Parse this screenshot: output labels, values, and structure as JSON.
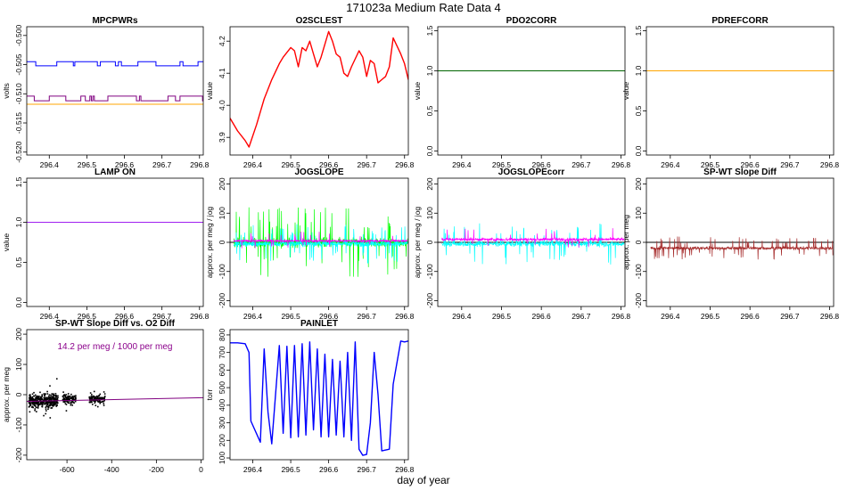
{
  "figure": {
    "title": "171023a   Medium Rate Data 4",
    "xlabel": "day of year"
  },
  "chart_data": [
    {
      "id": "mpcpwrs",
      "type": "line",
      "title": "MPCPWRs",
      "ylabel": "volts",
      "xlim": [
        296.34,
        296.81
      ],
      "ylim": [
        -0.5205,
        -0.4985
      ],
      "xticks": [
        "296.4",
        "296.5",
        "296.6",
        "296.7",
        "296.8"
      ],
      "yticks": [
        "-0.520",
        "-0.515",
        "-0.510",
        "-0.505",
        "-0.500"
      ],
      "series": [
        {
          "color": "#0000ff",
          "kind": "step",
          "values": [
            -0.5045,
            -0.5052
          ],
          "x_range": [
            296.34,
            296.81
          ]
        },
        {
          "color": "#800080",
          "kind": "step",
          "values": [
            -0.5104,
            -0.5112
          ],
          "x_range": [
            296.34,
            296.81
          ]
        },
        {
          "color": "#ffa500",
          "kind": "hline",
          "values": [
            -0.5118
          ],
          "x_range": [
            296.34,
            296.81
          ]
        }
      ]
    },
    {
      "id": "o2sclest",
      "type": "line",
      "title": "O2SCLEST",
      "ylabel": "value",
      "xlim": [
        296.34,
        296.81
      ],
      "ylim": [
        3.845,
        4.245
      ],
      "xticks": [
        "296.4",
        "296.5",
        "296.6",
        "296.7",
        "296.8"
      ],
      "yticks": [
        "3.9",
        "4.0",
        "4.1",
        "4.2"
      ],
      "series": [
        {
          "color": "#ff0000",
          "x": [
            296.34,
            296.36,
            296.38,
            296.39,
            296.41,
            296.43,
            296.45,
            296.47,
            296.48,
            296.5,
            296.51,
            296.52,
            296.53,
            296.54,
            296.55,
            296.56,
            296.57,
            296.58,
            296.6,
            296.61,
            296.62,
            296.63,
            296.64,
            296.65,
            296.66,
            296.68,
            296.69,
            296.7,
            296.71,
            296.72,
            296.73,
            296.74,
            296.75,
            296.76,
            296.77,
            296.79,
            296.8,
            296.81
          ],
          "y": [
            3.96,
            3.92,
            3.89,
            3.87,
            3.94,
            4.02,
            4.08,
            4.13,
            4.15,
            4.18,
            4.17,
            4.12,
            4.18,
            4.17,
            4.2,
            4.16,
            4.12,
            4.15,
            4.23,
            4.2,
            4.16,
            4.15,
            4.1,
            4.09,
            4.12,
            4.17,
            4.15,
            4.09,
            4.14,
            4.13,
            4.07,
            4.08,
            4.09,
            4.12,
            4.21,
            4.16,
            4.13,
            4.08
          ]
        }
      ]
    },
    {
      "id": "pdo2corr",
      "type": "line",
      "title": "PDO2CORR",
      "ylabel": "value",
      "xlim": [
        296.34,
        296.81
      ],
      "ylim": [
        -0.05,
        1.55
      ],
      "xticks": [
        "296.4",
        "296.5",
        "296.6",
        "296.7",
        "296.8"
      ],
      "yticks": [
        "0.0",
        "0.5",
        "1.0",
        "1.5"
      ],
      "series": [
        {
          "color": "#006400",
          "kind": "hline",
          "values": [
            1.0
          ],
          "x_range": [
            296.34,
            296.81
          ]
        }
      ]
    },
    {
      "id": "pdrefcorr",
      "type": "line",
      "title": "PDREFCORR",
      "ylabel": "value",
      "xlim": [
        296.34,
        296.81
      ],
      "ylim": [
        -0.05,
        1.55
      ],
      "xticks": [
        "296.4",
        "296.5",
        "296.6",
        "296.7",
        "296.8"
      ],
      "yticks": [
        "0.0",
        "0.5",
        "1.0",
        "1.5"
      ],
      "series": [
        {
          "color": "#ffa500",
          "kind": "hline",
          "values": [
            1.0
          ],
          "x_range": [
            296.34,
            296.81
          ]
        }
      ]
    },
    {
      "id": "lampon",
      "type": "line",
      "title": "LAMP ON",
      "ylabel": "value",
      "xlim": [
        296.34,
        296.81
      ],
      "ylim": [
        -0.05,
        1.55
      ],
      "xticks": [
        "296.4",
        "296.5",
        "296.6",
        "296.7",
        "296.8"
      ],
      "yticks": [
        "0.0",
        "0.5",
        "1.0",
        "1.5"
      ],
      "series": [
        {
          "color": "#a020f0",
          "kind": "hline",
          "values": [
            1.0
          ],
          "x_range": [
            296.34,
            296.81
          ]
        }
      ]
    },
    {
      "id": "jogslope",
      "type": "line",
      "title": "JOGSLOPE",
      "ylabel": "approx. per meg / jog",
      "xlim": [
        296.34,
        296.81
      ],
      "ylim": [
        -220,
        220
      ],
      "xticks": [
        "296.4",
        "296.5",
        "296.6",
        "296.7",
        "296.8"
      ],
      "yticks": [
        "-200",
        "-100",
        "0",
        "100",
        "200"
      ],
      "series": [
        {
          "color": "#00ff00",
          "kind": "noise",
          "center": 0,
          "amplitude": 30,
          "spikes": 60
        },
        {
          "color": "#00ffff",
          "kind": "noise",
          "center": -5,
          "amplitude": 18,
          "spikes": 45
        },
        {
          "color": "#ff00ff",
          "kind": "noise",
          "center": 5,
          "amplitude": 8,
          "spikes": 15
        }
      ],
      "hline": {
        "value": 0,
        "color": "#000000"
      }
    },
    {
      "id": "jogslopecorr",
      "type": "line",
      "title": "JOGSLOPEcorr",
      "ylabel": "approx. per meg / jog",
      "xlim": [
        296.34,
        296.81
      ],
      "ylim": [
        -220,
        220
      ],
      "xticks": [
        "296.4",
        "296.5",
        "296.6",
        "296.7",
        "296.8"
      ],
      "yticks": [
        "-200",
        "-100",
        "0",
        "100",
        "200"
      ],
      "series": [
        {
          "color": "#00ffff",
          "kind": "noise",
          "center": -5,
          "amplitude": 18,
          "spikes": 45
        },
        {
          "color": "#ff00ff",
          "kind": "noise",
          "center": 10,
          "amplitude": 10,
          "spikes": 20
        }
      ],
      "hline": {
        "value": 0,
        "color": "#000000"
      }
    },
    {
      "id": "spwtslopediff",
      "type": "line",
      "title": "SP-WT Slope Diff",
      "ylabel": "approx. per meg",
      "xlim": [
        296.34,
        296.81
      ],
      "ylim": [
        -220,
        220
      ],
      "xticks": [
        "296.4",
        "296.5",
        "296.6",
        "296.7",
        "296.8"
      ],
      "yticks": [
        "-200",
        "-100",
        "0",
        "100",
        "200"
      ],
      "series": [
        {
          "color": "#a52a2a",
          "kind": "noise",
          "center": -20,
          "amplitude": 10,
          "spikes": 60
        }
      ],
      "hline": {
        "value": 0,
        "color": "#000000"
      }
    },
    {
      "id": "spwt_vs_o2",
      "type": "scatter",
      "title": "SP-WT Slope Diff vs. O2 Diff",
      "ylabel": "approx. per meg",
      "annotation": "14.2 per meg / 1000 per meg",
      "annotation_color": "#8b008b",
      "xlim": [
        -780,
        10
      ],
      "ylim": [
        -215,
        215
      ],
      "xticks": [
        "-600",
        "-400",
        "-200",
        "0"
      ],
      "xtick_values": [
        -600,
        -400,
        -200,
        0
      ],
      "yticks": [
        "-200",
        "-100",
        "0",
        "100",
        "200"
      ],
      "clusters": [
        {
          "x": [
            -770,
            -640
          ],
          "y_center": -20,
          "y_spread": 20,
          "count": 420
        },
        {
          "x": [
            -620,
            -560
          ],
          "y_center": -15,
          "y_spread": 14,
          "count": 120
        },
        {
          "x": [
            -500,
            -430
          ],
          "y_center": -15,
          "y_spread": 12,
          "count": 130
        }
      ],
      "fit": {
        "color": "#800080",
        "x": [
          -780,
          10
        ],
        "y": [
          -22,
          -10
        ]
      }
    },
    {
      "id": "painlet",
      "type": "line",
      "title": "PAINLET",
      "ylabel": "torr",
      "xlim": [
        296.34,
        296.81
      ],
      "ylim": [
        90,
        830
      ],
      "xticks": [
        "296.4",
        "296.5",
        "296.6",
        "296.7",
        "296.8"
      ],
      "yticks": [
        "100",
        "200",
        "300",
        "400",
        "500",
        "600",
        "700",
        "800"
      ],
      "series": [
        {
          "color": "#0000ff",
          "x": [
            296.34,
            296.36,
            296.38,
            296.39,
            296.395,
            296.42,
            296.43,
            296.44,
            296.45,
            296.47,
            296.48,
            296.49,
            296.5,
            296.51,
            296.52,
            296.53,
            296.54,
            296.55,
            296.56,
            296.57,
            296.58,
            296.59,
            296.6,
            296.61,
            296.62,
            296.63,
            296.64,
            296.65,
            296.66,
            296.67,
            296.68,
            296.69,
            296.7,
            296.71,
            296.72,
            296.73,
            296.74,
            296.76,
            296.77,
            296.79,
            296.8,
            296.81
          ],
          "y": [
            755,
            755,
            750,
            700,
            310,
            190,
            720,
            360,
            180,
            740,
            240,
            735,
            215,
            740,
            220,
            750,
            230,
            760,
            260,
            720,
            220,
            690,
            220,
            660,
            230,
            650,
            220,
            700,
            200,
            760,
            150,
            115,
            120,
            300,
            700,
            460,
            140,
            150,
            520,
            765,
            760,
            765
          ]
        }
      ]
    }
  ]
}
